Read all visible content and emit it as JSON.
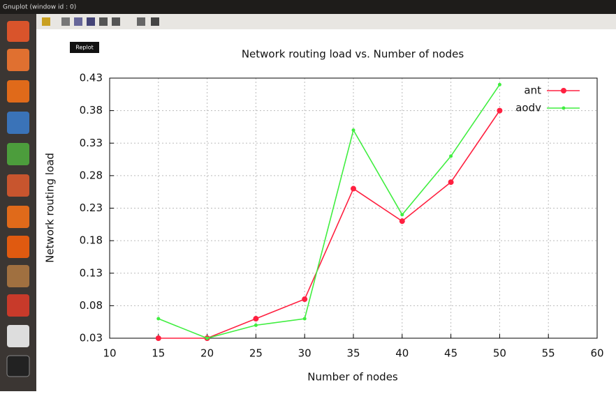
{
  "window": {
    "title": "Gnuplot (window id : 0)",
    "tooltip": "Replot"
  },
  "chart_data": {
    "type": "line",
    "title": "Network routing load vs. Number of nodes",
    "x_label": "Number of nodes",
    "y_label": "Network routing load",
    "x": [
      15,
      20,
      25,
      30,
      35,
      40,
      45,
      50
    ],
    "series": [
      {
        "name": "ant",
        "color": "#ff2040",
        "values": [
          0.03,
          0.03,
          0.06,
          0.09,
          0.26,
          0.21,
          0.27,
          0.38
        ]
      },
      {
        "name": "aodv",
        "color": "#40ee40",
        "values": [
          0.06,
          0.03,
          0.05,
          0.06,
          0.35,
          0.22,
          0.31,
          0.42
        ]
      }
    ],
    "xlim": [
      10,
      60
    ],
    "xticks": [
      10,
      15,
      20,
      25,
      30,
      35,
      40,
      45,
      50,
      55,
      60
    ],
    "ylim": [
      0.03,
      0.43
    ],
    "yticks": [
      0.03,
      0.08,
      0.13,
      0.18,
      0.23,
      0.28,
      0.33,
      0.38,
      0.43
    ],
    "grid": true,
    "legend": "top-right"
  }
}
